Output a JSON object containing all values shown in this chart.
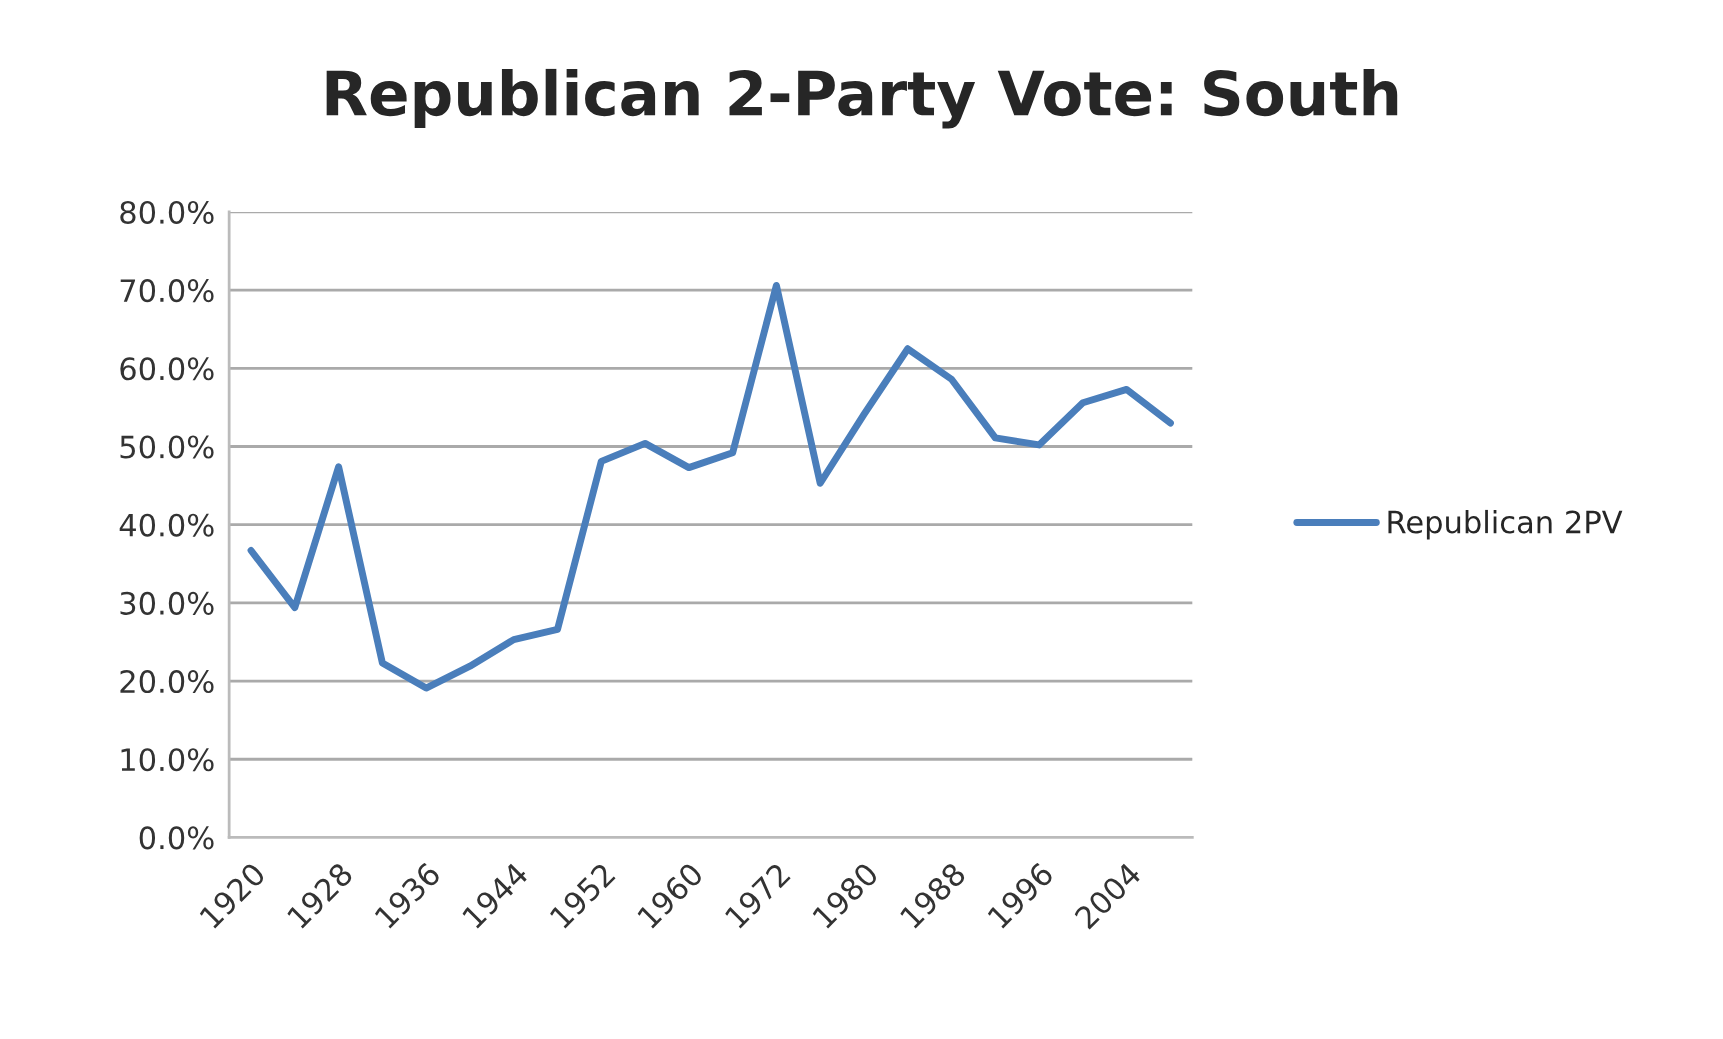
{
  "chart_data": {
    "type": "line",
    "title": "Republican 2-Party Vote: South",
    "categories": [
      "1920",
      null,
      "1928",
      null,
      "1936",
      null,
      "1944",
      null,
      "1952",
      null,
      "1960",
      null,
      "1972",
      null,
      "1980",
      null,
      "1988",
      null,
      "1996",
      null,
      "2004",
      null
    ],
    "series": [
      {
        "name": "Republican 2PV",
        "color": "#4a7ebb",
        "values": [
          36.7,
          29.4,
          47.4,
          22.3,
          19.1,
          21.9,
          25.3,
          26.6,
          48.1,
          50.4,
          47.3,
          49.2,
          70.6,
          45.3,
          54.1,
          62.5,
          58.6,
          51.1,
          50.2,
          55.6,
          57.3,
          53.0
        ]
      }
    ],
    "ylim": [
      0,
      80
    ],
    "yticks": [
      {
        "value": 0,
        "label": "0.0%"
      },
      {
        "value": 10,
        "label": "10.0%"
      },
      {
        "value": 20,
        "label": "20.0%"
      },
      {
        "value": 30,
        "label": "30.0%"
      },
      {
        "value": 40,
        "label": "40.0%"
      },
      {
        "value": 50,
        "label": "50.0%"
      },
      {
        "value": 60,
        "label": "60.0%"
      },
      {
        "value": 70,
        "label": "70.0%"
      },
      {
        "value": 80,
        "label": "80.0%"
      }
    ],
    "grid": "y",
    "legend": "right",
    "marker": "none",
    "line_style": "solid"
  }
}
